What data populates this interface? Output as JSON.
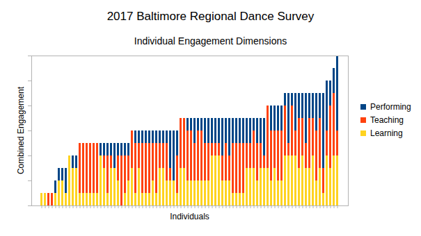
{
  "chart_data": {
    "type": "bar",
    "title": "2017 Baltimore Regional Dance Survey",
    "subtitle": "Individual Engagement Dimensions",
    "x_label": "Individuals",
    "y_label": "Combined Engagement",
    "stacked": true,
    "grid": false,
    "legend": "right",
    "tick_labels": false,
    "ylim": [
      0,
      6
    ],
    "yticks": [
      0,
      1,
      2,
      3,
      4,
      5,
      6
    ],
    "categories": [
      null,
      null,
      null,
      null,
      null,
      null,
      null,
      null,
      null,
      null,
      null,
      null,
      null,
      null,
      null,
      null,
      null,
      null,
      null,
      null,
      null,
      null,
      null,
      null,
      null,
      null,
      null,
      null,
      null,
      null,
      null,
      null,
      null,
      null,
      null,
      null,
      null,
      null,
      null,
      null,
      null,
      null,
      null,
      null,
      null,
      null,
      null,
      null,
      null,
      null,
      null,
      null,
      null,
      null,
      null,
      null,
      null,
      null,
      null,
      null,
      null,
      null,
      null,
      null,
      null,
      null,
      null,
      null,
      null,
      null,
      null,
      null,
      null,
      null,
      null,
      null,
      null,
      null,
      null,
      null,
      null,
      null,
      null,
      null,
      null,
      null
    ],
    "series": [
      {
        "name": "Performing",
        "color": "#004586",
        "values": [
          0,
          0,
          0,
          0,
          0.5,
          0.5,
          0.5,
          1,
          0,
          0.5,
          0.5,
          0,
          0,
          0,
          0,
          0,
          0,
          0.5,
          0.5,
          0.5,
          0.5,
          1,
          0.5,
          0.5,
          0.5,
          0.5,
          0,
          0.5,
          0.5,
          0.5,
          0.5,
          0.5,
          0.5,
          0.5,
          0.5,
          0.5,
          0.5,
          1.5,
          2,
          1,
          0,
          0,
          0.5,
          0.5,
          1,
          0.5,
          0.5,
          1,
          1,
          1,
          1,
          1,
          1.5,
          1,
          1.5,
          1,
          1,
          1,
          1,
          1,
          1,
          0.5,
          1,
          1,
          1.5,
          0,
          1,
          1,
          1,
          1,
          0.5,
          2,
          0.5,
          1.5,
          1,
          1,
          2,
          1,
          1,
          1.5,
          1,
          3,
          2,
          1,
          1,
          3
        ]
      },
      {
        "name": "Teaching",
        "color": "#ff420e",
        "values": [
          0,
          0,
          0.5,
          0.5,
          0,
          0,
          0,
          0,
          0,
          0,
          0,
          2,
          2,
          2,
          2,
          2,
          2,
          0,
          0.5,
          1.5,
          0.5,
          0,
          1,
          2,
          1.5,
          1,
          1.5,
          2,
          1,
          2,
          2,
          2,
          1.5,
          2,
          1,
          1,
          1.5,
          0.5,
          0,
          1.5,
          2,
          2,
          2,
          2,
          1.5,
          2,
          2,
          1.5,
          1.5,
          0.5,
          0.5,
          0.5,
          1,
          1.5,
          1,
          2,
          2,
          2,
          2,
          1,
          1,
          1.5,
          1.5,
          1,
          0.5,
          2.5,
          2,
          1.5,
          2,
          2,
          2,
          0.5,
          2,
          1,
          2,
          1.5,
          1,
          2,
          1.5,
          2,
          2,
          1,
          1,
          2.5,
          2.5,
          1
        ]
      },
      {
        "name": "Learning",
        "color": "#ffd320",
        "values": [
          0.5,
          0.5,
          0,
          0,
          0.5,
          1,
          1,
          0.5,
          2,
          1.5,
          1.5,
          0.5,
          0.5,
          0.5,
          0.5,
          0.5,
          0.5,
          2,
          1.5,
          0.5,
          1.5,
          1.5,
          1,
          0,
          0.5,
          1,
          1.5,
          0.5,
          1.5,
          0.5,
          0.5,
          0.5,
          1,
          0.5,
          1.5,
          1.5,
          1,
          1,
          1,
          0.5,
          1.5,
          1.5,
          1,
          1,
          1,
          1,
          1,
          1,
          1,
          2,
          2,
          2,
          1,
          1,
          1,
          0.5,
          0.5,
          0.5,
          0.5,
          1.5,
          1.5,
          1.5,
          1,
          1.5,
          1.5,
          1.5,
          1,
          1.5,
          1,
          1,
          2,
          2,
          2,
          2,
          1.5,
          2,
          1.5,
          1.5,
          2,
          1,
          1.5,
          0.5,
          2,
          1.5,
          2,
          2
        ]
      }
    ]
  }
}
